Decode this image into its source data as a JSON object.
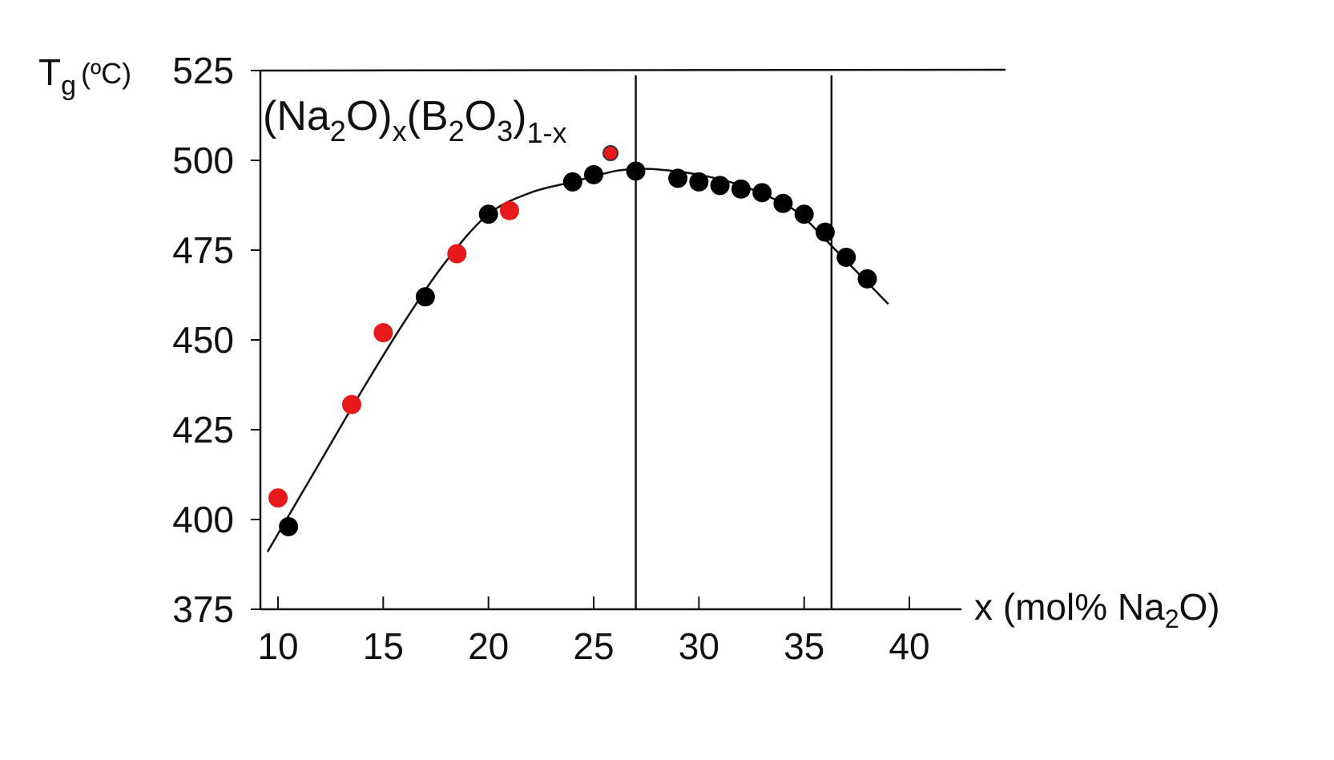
{
  "chart_data": {
    "type": "scatter",
    "title": {
      "prefix": "(Na",
      "sub1": "2",
      "mid1": "O)",
      "sub2": "x",
      "mid2": "(B",
      "sub3": "2",
      "mid3": "O",
      "sub4": "3",
      "mid4": ")",
      "sub5": "1-x"
    },
    "ylabel": {
      "main": "T",
      "sub": "g",
      "unit": "(ºC)"
    },
    "xlabel": {
      "prefix": "x (mol% Na",
      "sub": "2",
      "suffix": "O)"
    },
    "xlim": [
      9.5,
      39.5
    ],
    "ylim": [
      375,
      525
    ],
    "x_ticks": [
      10,
      15,
      20,
      25,
      30,
      35,
      40
    ],
    "y_ticks": [
      375,
      400,
      425,
      450,
      475,
      500,
      525
    ],
    "x_tick_labels": [
      "10",
      "15",
      "20",
      "25",
      "30",
      "35",
      "40"
    ],
    "y_tick_labels": [
      "375",
      "400",
      "425",
      "450",
      "475",
      "500",
      "525"
    ],
    "vertical_lines": [
      27.0,
      36.3
    ],
    "top_line": true,
    "series": [
      {
        "marker_color": "#000000",
        "points": [
          {
            "x": 10.5,
            "y": 398
          },
          {
            "x": 17.0,
            "y": 462
          },
          {
            "x": 20.0,
            "y": 485
          },
          {
            "x": 24.0,
            "y": 494
          },
          {
            "x": 25.0,
            "y": 496
          },
          {
            "x": 27.0,
            "y": 497
          },
          {
            "x": 29.0,
            "y": 495
          },
          {
            "x": 30.0,
            "y": 494
          },
          {
            "x": 31.0,
            "y": 493
          },
          {
            "x": 32.0,
            "y": 492
          },
          {
            "x": 33.0,
            "y": 491
          },
          {
            "x": 34.0,
            "y": 488
          },
          {
            "x": 35.0,
            "y": 485
          },
          {
            "x": 36.0,
            "y": 480
          },
          {
            "x": 37.0,
            "y": 473
          },
          {
            "x": 38.0,
            "y": 467
          }
        ]
      },
      {
        "marker_color": "#e8191b",
        "points": [
          {
            "x": 10.0,
            "y": 406
          },
          {
            "x": 13.5,
            "y": 432
          },
          {
            "x": 15.0,
            "y": 452
          },
          {
            "x": 18.5,
            "y": 474
          },
          {
            "x": 21.0,
            "y": 486
          },
          {
            "x": 25.8,
            "y": 502
          }
        ]
      }
    ],
    "fit_curve": {
      "x": [
        9.5,
        12,
        14,
        16,
        18,
        20,
        22,
        24,
        26,
        27,
        28,
        30,
        32,
        34,
        35,
        36,
        37,
        38,
        39
      ],
      "y": [
        391,
        416,
        436,
        455,
        472,
        485,
        491,
        494,
        497,
        497.5,
        497.5,
        496,
        493,
        488,
        484,
        478,
        472,
        466,
        460
      ]
    }
  }
}
